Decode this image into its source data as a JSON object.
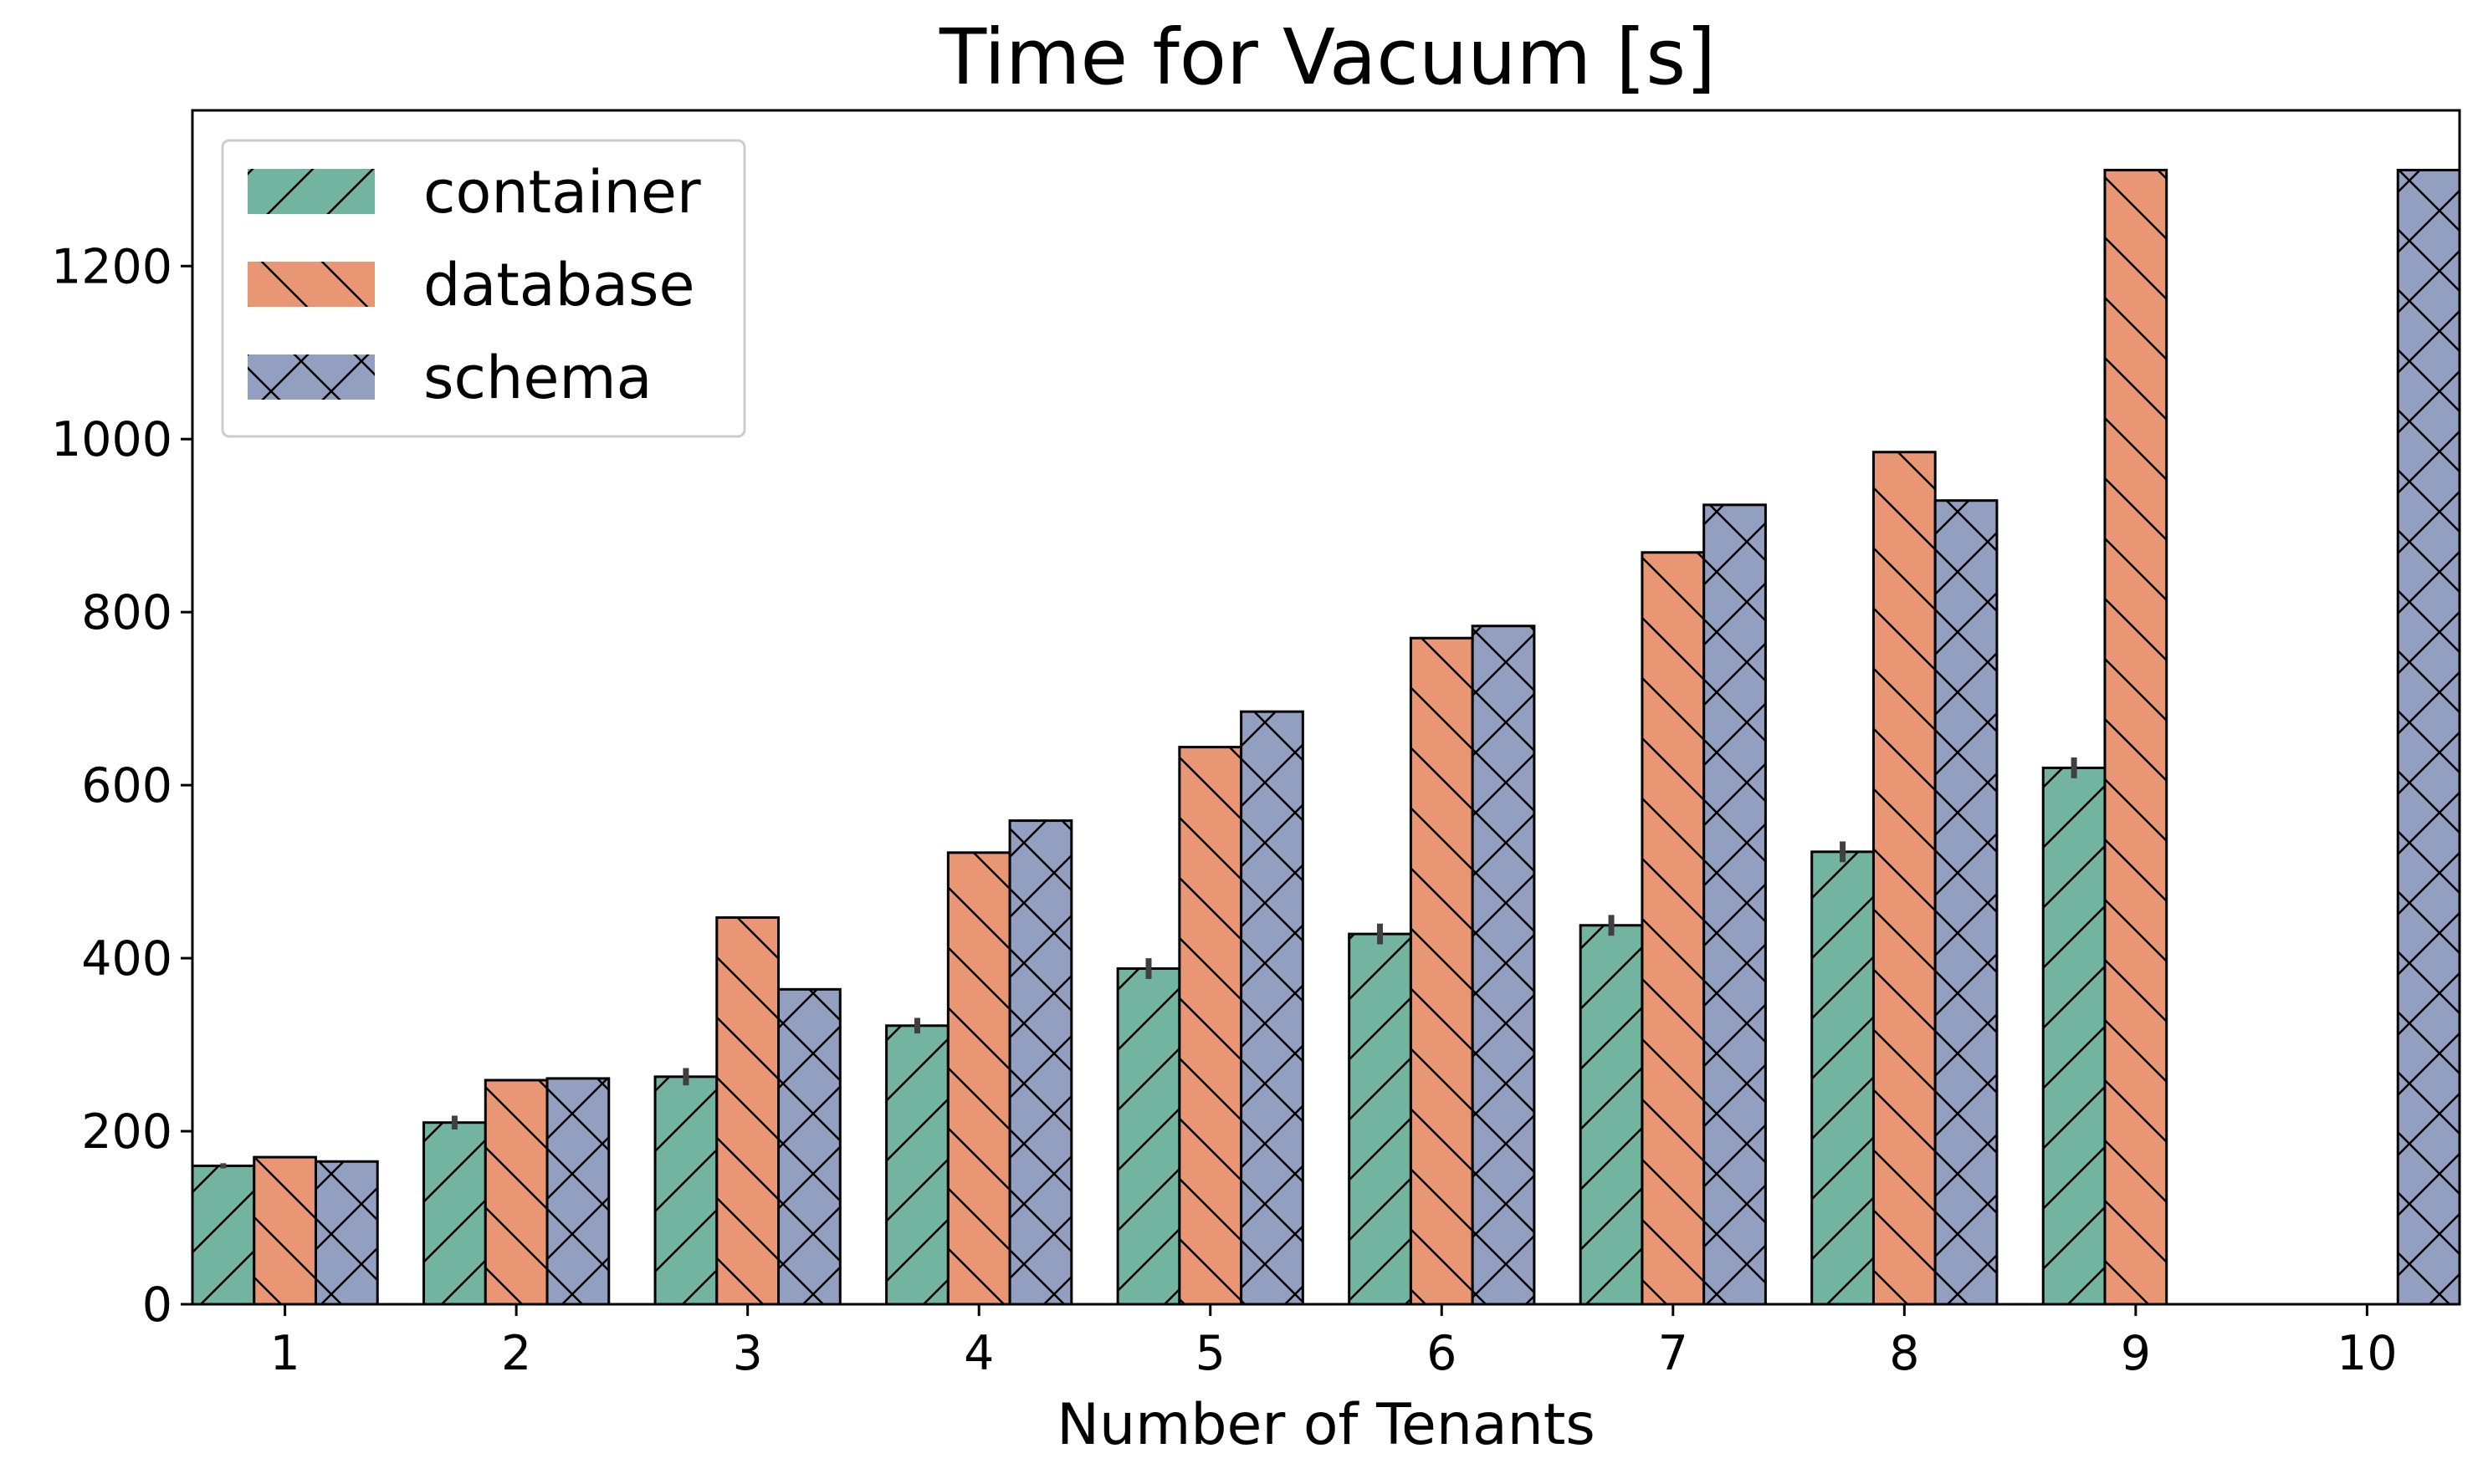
{
  "chart_data": {
    "type": "bar",
    "title": "Time for Vacuum [s]",
    "xlabel": "Number of Tenants",
    "ylabel": "",
    "categories": [
      "1",
      "2",
      "3",
      "4",
      "5",
      "6",
      "7",
      "8",
      "9",
      "10"
    ],
    "ylim": [
      0,
      1380
    ],
    "yticks": [
      0,
      200,
      400,
      600,
      800,
      1000,
      1200
    ],
    "yticks_labels": [
      "0",
      "200",
      "400",
      "600",
      "800",
      "1000",
      "1200"
    ],
    "grid": false,
    "legend_position": "top-left",
    "series": [
      {
        "name": "container",
        "color": "#72b4a0",
        "hatch": "forward-slash",
        "values": [
          160,
          210,
          263,
          322,
          388,
          428,
          438,
          523,
          620,
          null
        ],
        "error": [
          3,
          8,
          10,
          9,
          12,
          12,
          12,
          12,
          12,
          null
        ]
      },
      {
        "name": "database",
        "color": "#e89673",
        "hatch": "back-slash",
        "values": [
          170,
          259,
          447,
          522,
          644,
          770,
          869,
          985,
          1311,
          null
        ],
        "error": [
          null,
          null,
          null,
          null,
          null,
          null,
          null,
          null,
          null,
          null
        ]
      },
      {
        "name": "schema",
        "color": "#939fc0",
        "hatch": "cross",
        "values": [
          165,
          261,
          364,
          559,
          685,
          784,
          924,
          929,
          null,
          1311
        ],
        "error": [
          null,
          null,
          null,
          null,
          null,
          null,
          null,
          null,
          null,
          null
        ]
      }
    ]
  }
}
